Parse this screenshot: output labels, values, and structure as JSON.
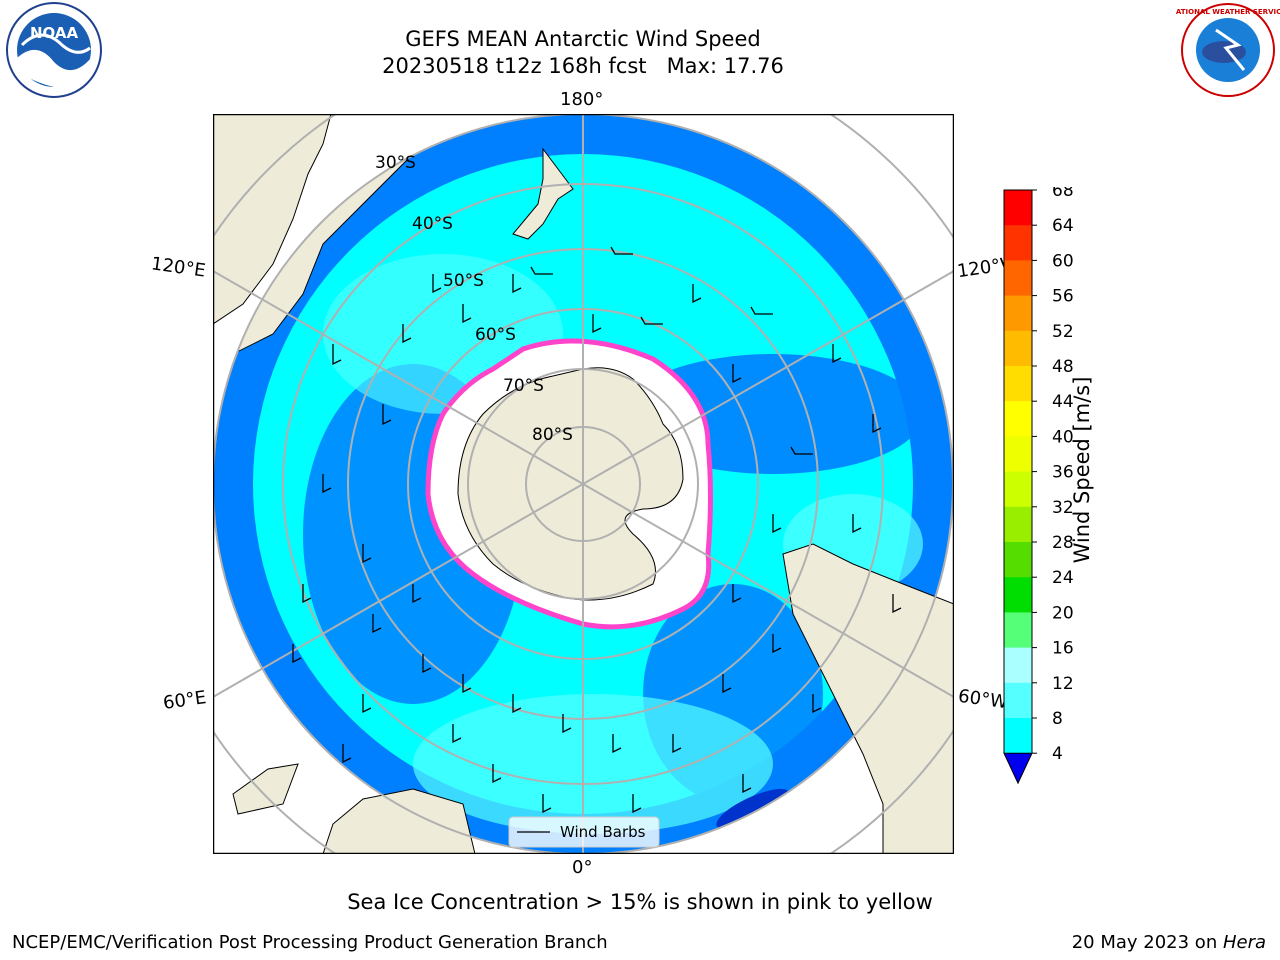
{
  "title": {
    "line1": "GEFS MEAN Antarctic Wind Speed",
    "line2": "20230518 t12z 168h fcst   Max: 17.76"
  },
  "caption": "Sea Ice Concentration > 15% is shown in pink to yellow",
  "footer": {
    "left": "NCEP/EMC/Verification Post Processing Product Generation Branch",
    "date": "20 May 2023 on ",
    "machine": "Hera"
  },
  "logos": {
    "noaa": "NOAA",
    "nws": "NATIONAL WEATHER SERVICE"
  },
  "map": {
    "projection": "south-polar-stereographic",
    "longitude_labels": {
      "top": "180°",
      "bottom": "0°",
      "upper_left": "120°E",
      "upper_right": "120°W",
      "lower_left": "60°E",
      "lower_right": "60°W"
    },
    "latitude_labels": [
      "30°S",
      "40°S",
      "50°S",
      "60°S",
      "70°S",
      "80°S"
    ],
    "legend_label": "Wind Barbs",
    "colors": {
      "land": "#eeecd9",
      "ocean_4_8": "#0080ff",
      "ocean_8_12": "#00ffff",
      "ocean_12_16": "#55ffff",
      "sea_ice": "#ffffff",
      "ice_edge": "#ff44cc",
      "grid": "#b0b0b0"
    }
  },
  "colorbar": {
    "label": "Wind Speed [m/s]",
    "ticks": [
      "68",
      "64",
      "60",
      "56",
      "52",
      "48",
      "44",
      "40",
      "36",
      "32",
      "28",
      "24",
      "20",
      "16",
      "12",
      "8",
      "4"
    ],
    "colors": [
      "#ff0000",
      "#ff3300",
      "#ff6600",
      "#ff9900",
      "#ffbb00",
      "#ffdd00",
      "#ffff00",
      "#eeff00",
      "#ccff00",
      "#99ee00",
      "#55dd00",
      "#00dd00",
      "#55ff77",
      "#aaffff",
      "#55ffff",
      "#00ffff",
      "#0066ff"
    ],
    "under_color": "#0000ee"
  }
}
